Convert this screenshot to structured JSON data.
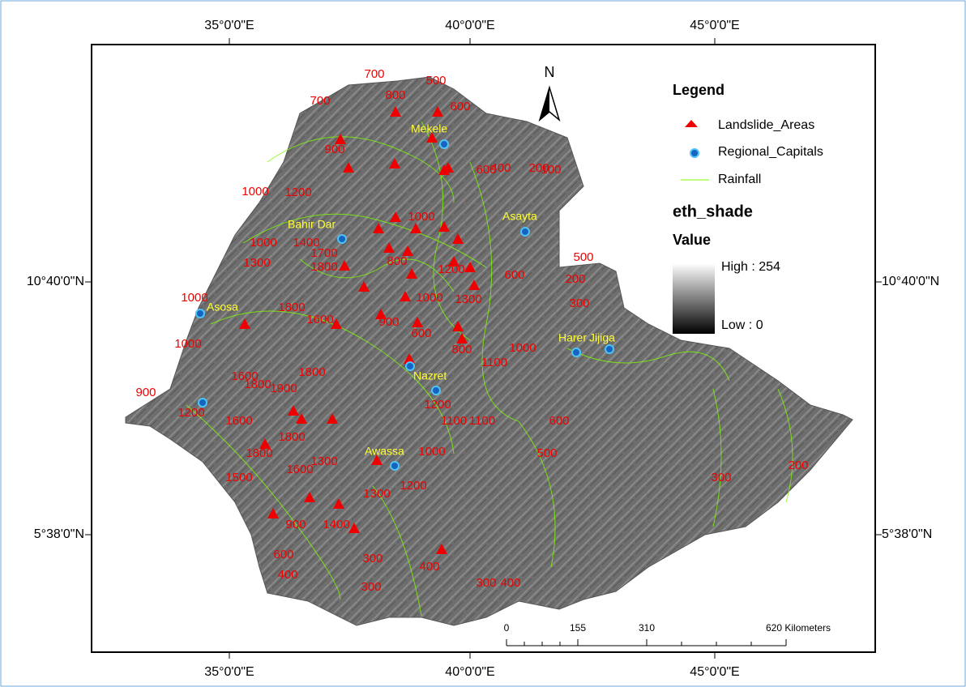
{
  "frame": {
    "top_labels": [
      "35°0'0\"E",
      "40°0'0\"E",
      "45°0'0\"E"
    ],
    "bottom_labels": [
      "35°0'0\"E",
      "40°0'0\"E",
      "45°0'0\"E"
    ],
    "left_labels": [
      "10°40'0\"N",
      "5°38'0\"N"
    ],
    "right_labels": [
      "10°40'0\"N",
      "5°38'0\"N"
    ]
  },
  "north_arrow": "N",
  "legend": {
    "title": "Legend",
    "items": [
      "Landslide_Areas",
      "Regional_Capitals",
      "Rainfall"
    ],
    "raster_title": "eth_shade",
    "value_label": "Value",
    "high": "High : 254",
    "low": "Low : 0"
  },
  "capitals": [
    "Mekele",
    "Bahir Dar",
    "Asayta",
    "Asosa",
    "Harer",
    "Jijiga",
    "Nazret",
    "Awassa"
  ],
  "contour_labels": [
    "700",
    "700",
    "800",
    "500",
    "600",
    "900",
    "1000",
    "600",
    "400",
    "200",
    "100",
    "1000",
    "1200",
    "1400",
    "1300",
    "1000",
    "1700",
    "1800",
    "1000",
    "800",
    "1200",
    "600",
    "500",
    "200",
    "300",
    "1000",
    "1600",
    "1800",
    "1600",
    "900",
    "1300",
    "1000",
    "600",
    "800",
    "1600",
    "1900",
    "1800",
    "900",
    "1200",
    "1800",
    "1000",
    "1100",
    "1200",
    "1100",
    "1100",
    "1800",
    "1600",
    "1800",
    "1500",
    "1300",
    "1000",
    "500",
    "600",
    "300",
    "200",
    "1300",
    "1200",
    "900",
    "600",
    "400",
    "300",
    "400",
    "1400",
    "300",
    "400",
    "300"
  ],
  "scale_bar": {
    "labels": [
      "0",
      "155",
      "310",
      "620 Kilometers"
    ]
  }
}
